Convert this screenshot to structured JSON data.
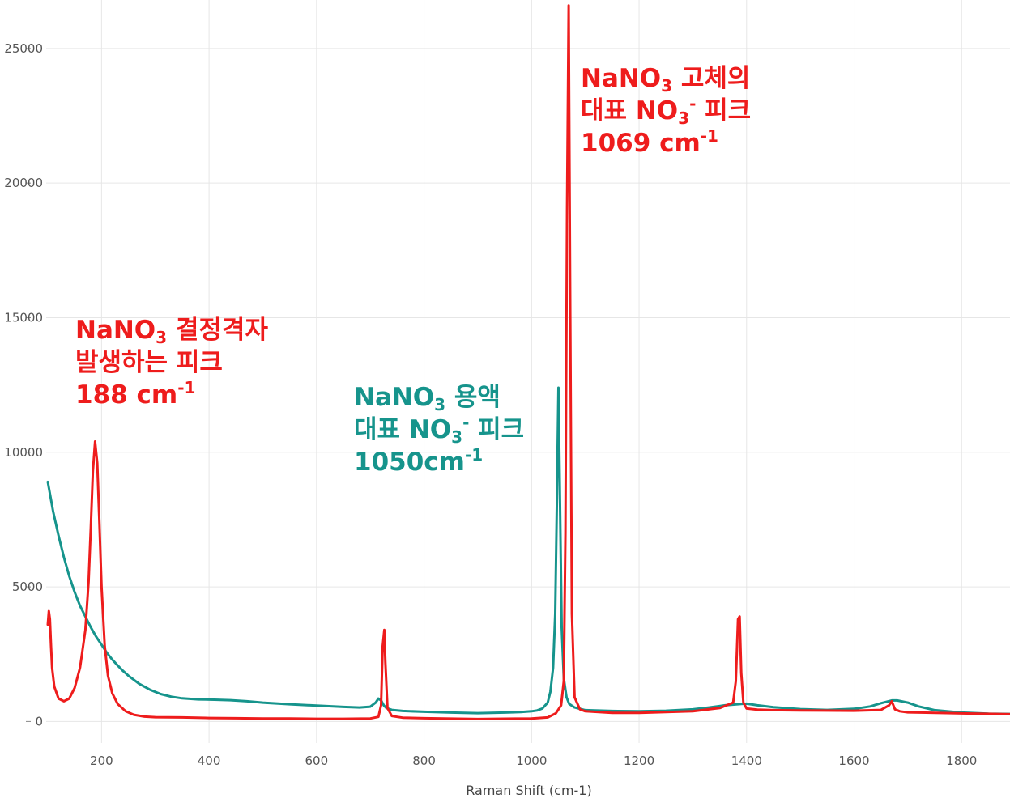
{
  "chart_data": {
    "type": "line",
    "title": "",
    "xlabel": "Raman Shift (cm-1)",
    "ylabel": "",
    "xlim": [
      97,
      1890
    ],
    "ylim": [
      -800,
      26800
    ],
    "x_ticks": [
      200,
      400,
      600,
      800,
      1000,
      1200,
      1400,
      1600,
      1800
    ],
    "y_ticks": [
      0,
      5000,
      10000,
      15000,
      20000,
      25000
    ],
    "grid": true,
    "series": [
      {
        "name": "NaNO3 용액",
        "color": "#16948c",
        "x": [
          100,
          110,
          120,
          130,
          140,
          150,
          160,
          170,
          180,
          190,
          200,
          210,
          220,
          230,
          240,
          250,
          270,
          290,
          310,
          330,
          350,
          380,
          410,
          440,
          470,
          500,
          550,
          600,
          650,
          680,
          700,
          710,
          715,
          720,
          725,
          730,
          740,
          760,
          800,
          850,
          900,
          950,
          980,
          1000,
          1010,
          1020,
          1030,
          1035,
          1040,
          1044,
          1047,
          1050,
          1053,
          1056,
          1060,
          1065,
          1070,
          1080,
          1100,
          1150,
          1200,
          1250,
          1300,
          1330,
          1360,
          1390,
          1400,
          1420,
          1450,
          1500,
          1550,
          1600,
          1630,
          1650,
          1670,
          1680,
          1700,
          1720,
          1750,
          1800,
          1850,
          1890
        ],
        "y": [
          8900,
          7800,
          6900,
          6100,
          5400,
          4800,
          4300,
          3900,
          3500,
          3150,
          2850,
          2550,
          2300,
          2080,
          1880,
          1700,
          1400,
          1180,
          1020,
          920,
          860,
          820,
          810,
          790,
          750,
          700,
          640,
          590,
          540,
          520,
          550,
          700,
          850,
          780,
          600,
          500,
          430,
          390,
          360,
          330,
          310,
          330,
          350,
          380,
          410,
          480,
          700,
          1100,
          2000,
          4000,
          8000,
          12400,
          8000,
          3500,
          1600,
          900,
          650,
          520,
          420,
          390,
          380,
          400,
          450,
          520,
          600,
          650,
          660,
          600,
          530,
          460,
          430,
          470,
          560,
          680,
          780,
          780,
          700,
          560,
          420,
          330,
          290,
          280
        ]
      },
      {
        "name": "NaNO3 고체",
        "color": "#ee1c1c",
        "x": [
          100,
          102,
          104,
          106,
          108,
          112,
          120,
          130,
          140,
          150,
          160,
          170,
          176,
          180,
          184,
          188,
          192,
          196,
          200,
          206,
          212,
          220,
          230,
          245,
          260,
          280,
          300,
          350,
          400,
          450,
          500,
          550,
          600,
          650,
          700,
          715,
          720,
          723,
          726,
          728,
          732,
          740,
          760,
          800,
          900,
          1000,
          1030,
          1045,
          1055,
          1060,
          1063,
          1066,
          1069,
          1072,
          1075,
          1080,
          1090,
          1100,
          1150,
          1200,
          1300,
          1350,
          1375,
          1380,
          1384,
          1387,
          1390,
          1394,
          1400,
          1420,
          1450,
          1500,
          1600,
          1650,
          1665,
          1670,
          1673,
          1676,
          1685,
          1700,
          1800,
          1890
        ],
        "y": [
          3600,
          4100,
          3800,
          2800,
          2000,
          1300,
          850,
          750,
          850,
          1250,
          2000,
          3400,
          5200,
          7200,
          9300,
          10400,
          9600,
          7400,
          5000,
          2800,
          1700,
          1050,
          650,
          380,
          250,
          180,
          160,
          150,
          130,
          120,
          110,
          110,
          100,
          100,
          110,
          170,
          600,
          2800,
          3400,
          2200,
          500,
          200,
          140,
          120,
          90,
          110,
          150,
          300,
          600,
          1500,
          7000,
          19000,
          26600,
          15000,
          4000,
          900,
          450,
          380,
          320,
          320,
          380,
          500,
          700,
          1500,
          3800,
          3900,
          1800,
          700,
          480,
          440,
          420,
          410,
          400,
          430,
          600,
          750,
          600,
          450,
          380,
          340,
          300,
          270
        ]
      }
    ],
    "annotations": [
      {
        "color": "#ee1c1c",
        "compound": "NaNO",
        "sub": "3",
        "rest": " 결정격자",
        "line2": "발생하는 피크",
        "value": "188 cm",
        "exp": "-1"
      },
      {
        "color": "#16948c",
        "compound": "NaNO",
        "sub": "3",
        "rest": " 용액",
        "line2_pre": "대표 NO",
        "line2_sub": "3",
        "line2_sup": "-",
        "line2_post": " 피크",
        "value": "1050cm",
        "exp": "-1"
      },
      {
        "color": "#ee1c1c",
        "compound": "NaNO",
        "sub": "3",
        "rest": " 고체의",
        "line2_pre": "대표 NO",
        "line2_sub": "3",
        "line2_sup": "-",
        "line2_post": " 피크",
        "value": "1069 cm",
        "exp": "-1"
      }
    ]
  }
}
